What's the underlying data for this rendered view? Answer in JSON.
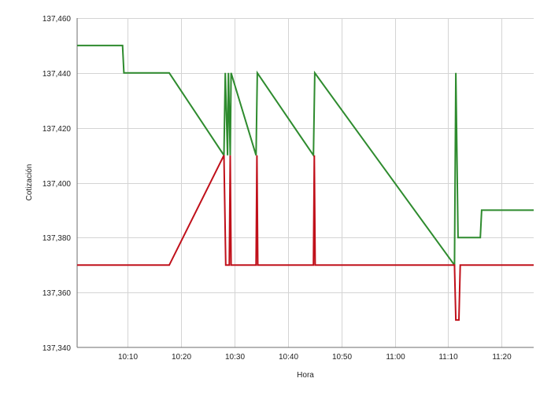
{
  "chart_data": {
    "type": "line",
    "xlabel": "Hora",
    "ylabel": "Cotización",
    "x_unit": "time (HH:MM)",
    "xlim": [
      "10:00:30",
      "11:26:00"
    ],
    "ylim": [
      137.34,
      137.46
    ],
    "x_ticks": [
      {
        "t": "10:10",
        "label": "10:10"
      },
      {
        "t": "10:20",
        "label": "10:20"
      },
      {
        "t": "10:30",
        "label": "10:30"
      },
      {
        "t": "10:40",
        "label": "10:40"
      },
      {
        "t": "10:50",
        "label": "10:50"
      },
      {
        "t": "11:00",
        "label": "11:00"
      },
      {
        "t": "11:10",
        "label": "11:10"
      },
      {
        "t": "11:20",
        "label": "11:20"
      }
    ],
    "y_ticks": [
      {
        "v": 137.34,
        "label": "137,340"
      },
      {
        "v": 137.36,
        "label": "137,360"
      },
      {
        "v": 137.38,
        "label": "137,380"
      },
      {
        "v": 137.4,
        "label": "137,400"
      },
      {
        "v": 137.42,
        "label": "137,420"
      },
      {
        "v": 137.44,
        "label": "137,440"
      },
      {
        "v": 137.46,
        "label": "137,460"
      }
    ],
    "grid": true,
    "legend": "none",
    "series": [
      {
        "color": "#2e8b2e",
        "points": [
          [
            "10:00:30",
            137.45
          ],
          [
            "10:09:00",
            137.45
          ],
          [
            "10:09:15",
            137.44
          ],
          [
            "10:17:45",
            137.44
          ],
          [
            "10:28:00",
            137.41
          ],
          [
            "10:28:15",
            137.44
          ],
          [
            "10:28:40",
            137.41
          ],
          [
            "10:28:50",
            137.44
          ],
          [
            "10:29:10",
            137.41
          ],
          [
            "10:29:20",
            137.44
          ],
          [
            "10:34:00",
            137.41
          ],
          [
            "10:34:15",
            137.44
          ],
          [
            "10:44:45",
            137.41
          ],
          [
            "10:45:00",
            137.44
          ],
          [
            "11:11:10",
            137.37
          ],
          [
            "11:11:25",
            137.44
          ],
          [
            "11:11:50",
            137.38
          ],
          [
            "11:16:00",
            137.38
          ],
          [
            "11:16:15",
            137.39
          ],
          [
            "11:26:00",
            137.39
          ]
        ]
      },
      {
        "color": "#c0101a",
        "points": [
          [
            "10:00:30",
            137.37
          ],
          [
            "10:17:45",
            137.37
          ],
          [
            "10:28:00",
            137.41
          ],
          [
            "10:28:20",
            137.37
          ],
          [
            "10:29:00",
            137.37
          ],
          [
            "10:29:10",
            137.41
          ],
          [
            "10:29:20",
            137.37
          ],
          [
            "10:34:00",
            137.37
          ],
          [
            "10:34:10",
            137.41
          ],
          [
            "10:34:20",
            137.37
          ],
          [
            "10:44:45",
            137.37
          ],
          [
            "10:44:55",
            137.41
          ],
          [
            "10:45:05",
            137.37
          ],
          [
            "11:11:10",
            137.37
          ],
          [
            "11:11:25",
            137.35
          ],
          [
            "11:12:00",
            137.35
          ],
          [
            "11:12:15",
            137.37
          ],
          [
            "11:26:00",
            137.37
          ]
        ]
      }
    ]
  }
}
